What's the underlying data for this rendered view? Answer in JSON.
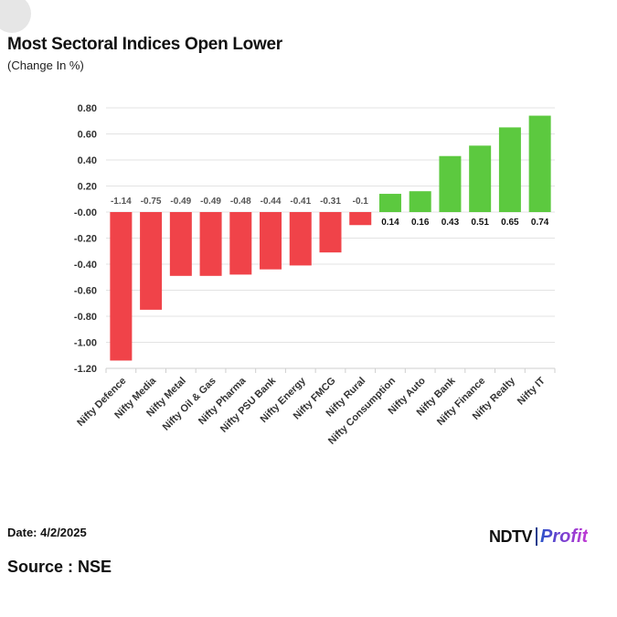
{
  "title": "Most Sectoral Indices Open Lower",
  "subtitle": "(Change In %)",
  "footer": {
    "date": "Date: 4/2/2025",
    "source": "Source : NSE",
    "logo_ndtv": "NDTV",
    "logo_profit": "Profit"
  },
  "chart_data": {
    "type": "bar",
    "categories": [
      "Nifty Defence",
      "Nifty Media",
      "Nifty Metal",
      "Nifty Oil & Gas",
      "Nifty Pharma",
      "Nifty PSU Bank",
      "Nifty Energy",
      "Nifty FMCG",
      "Nifty Rural",
      "Nifty Consumption",
      "Nifty Auto",
      "Nifty Bank",
      "Nifty Finance",
      "Nifty Realty",
      "Nifty IT"
    ],
    "values": [
      -1.14,
      -0.75,
      -0.49,
      -0.49,
      -0.48,
      -0.44,
      -0.41,
      -0.31,
      -0.1,
      0.14,
      0.16,
      0.43,
      0.51,
      0.65,
      0.74
    ],
    "value_labels": [
      "-1.14",
      "-0.75",
      "-0.49",
      "-0.49",
      "-0.48",
      "-0.44",
      "-0.41",
      "-0.31",
      "-0.1",
      "0.14",
      "0.16",
      "0.43",
      "0.51",
      "0.65",
      "0.74"
    ],
    "ylim": [
      -1.2,
      0.8
    ],
    "yticks": [
      0.8,
      0.6,
      0.4,
      0.2,
      0.0,
      -0.2,
      -0.4,
      -0.6,
      -0.8,
      -1.0,
      -1.2
    ],
    "ytick_labels": [
      "0.80",
      "0.60",
      "0.40",
      "0.20",
      "-0.00",
      "-0.20",
      "-0.40",
      "-0.60",
      "-0.80",
      "-1.00",
      "-1.20"
    ],
    "xlabel": "",
    "ylabel": "",
    "grid": true,
    "colors": {
      "negative": "#f04349",
      "positive": "#5cc93f",
      "grid": "#e3e3e3"
    }
  }
}
